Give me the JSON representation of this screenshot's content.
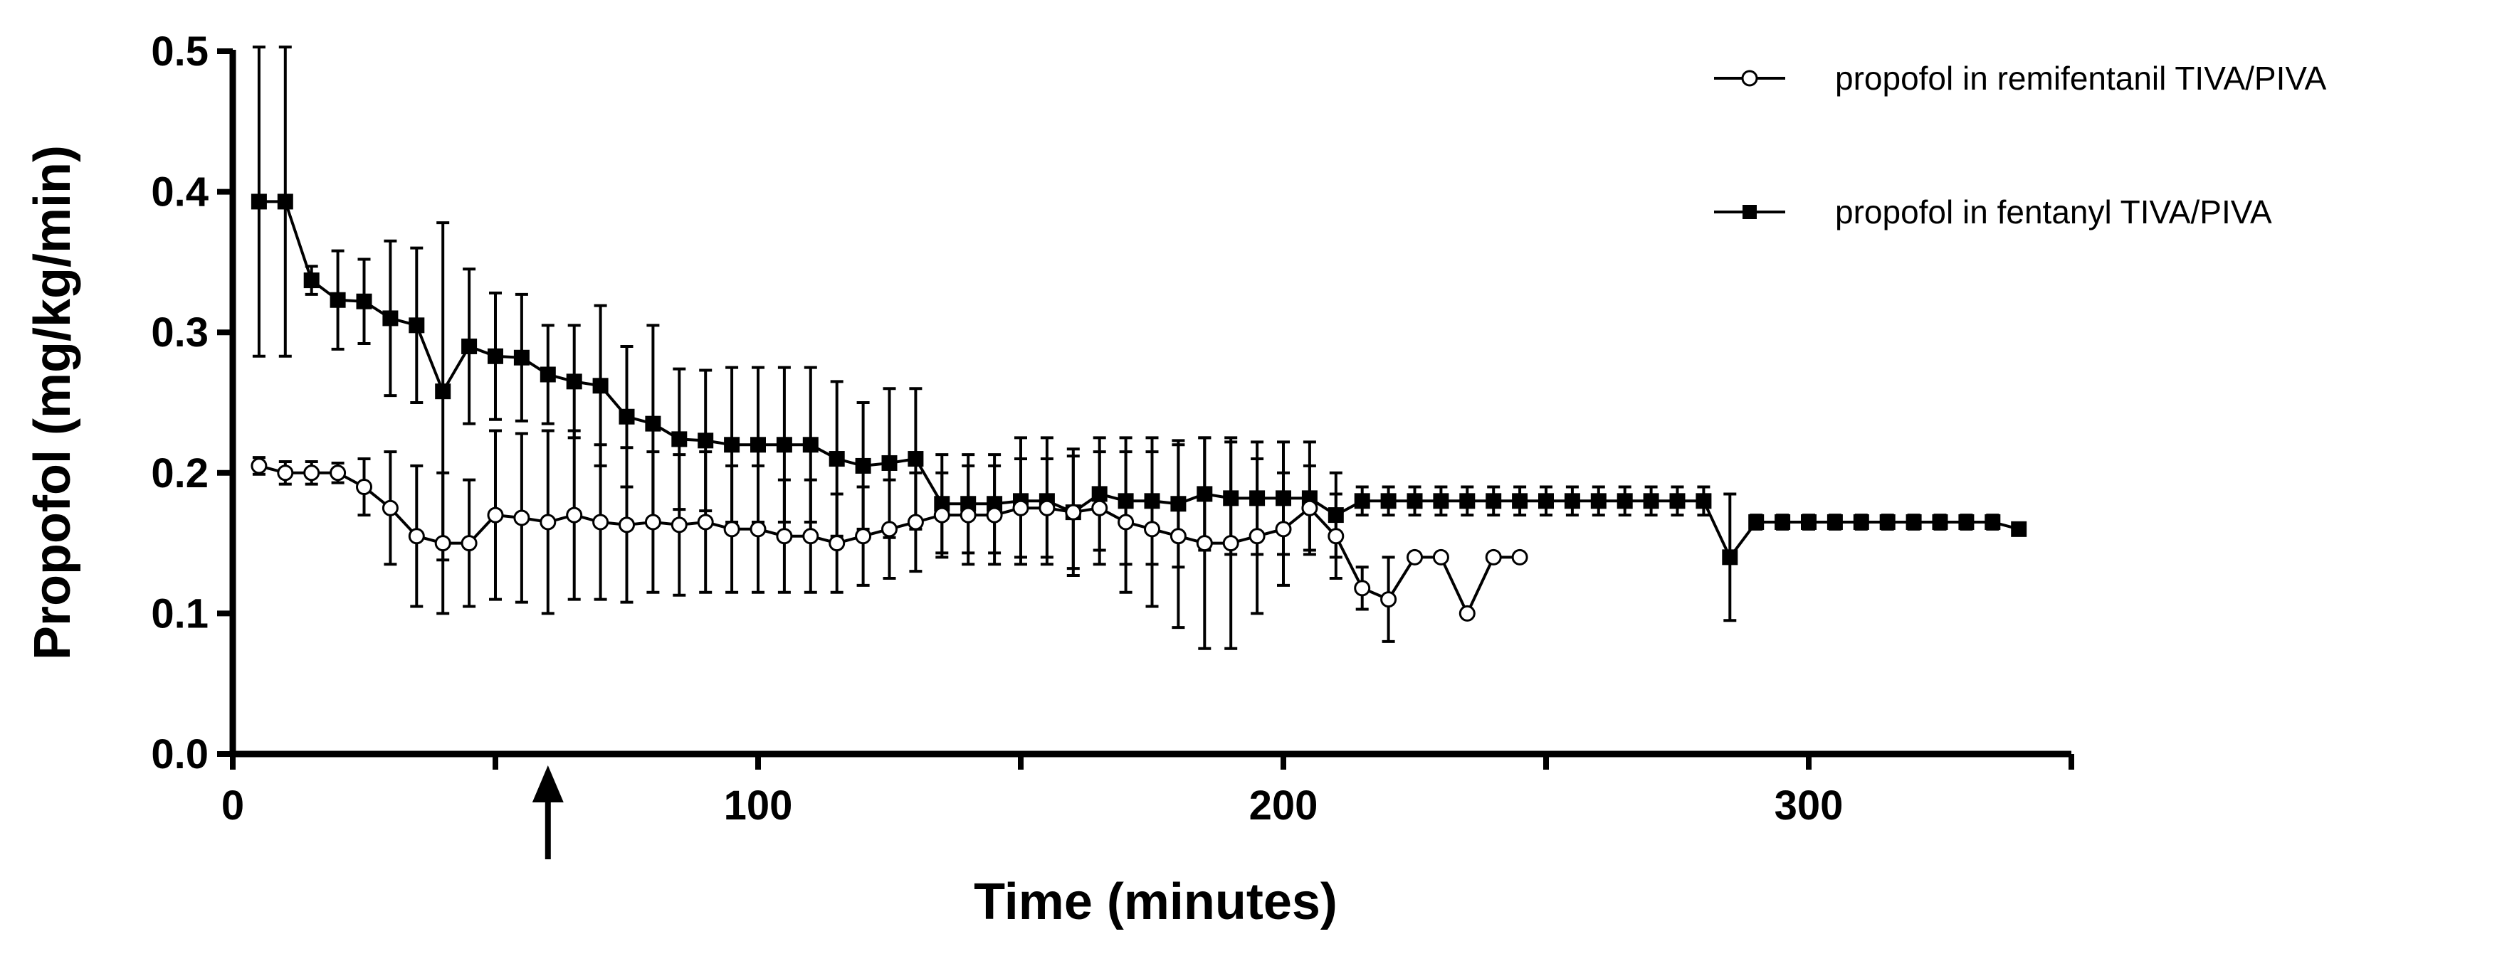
{
  "chart_data": {
    "type": "line",
    "xlabel": "Time (minutes)",
    "ylabel": "Propofol (mg/kg/min)",
    "xlim": [
      0,
      350
    ],
    "ylim": [
      0,
      0.5
    ],
    "x_ticks": [
      {
        "value": 0,
        "label": "0"
      },
      {
        "value": 100,
        "label": "100"
      },
      {
        "value": 200,
        "label": "200"
      },
      {
        "value": 300,
        "label": "300"
      }
    ],
    "x_minor_ticks": [
      50,
      150,
      250,
      350
    ],
    "y_ticks": [
      {
        "value": 0.0,
        "label": "0.0"
      },
      {
        "value": 0.1,
        "label": "0.1"
      },
      {
        "value": 0.2,
        "label": "0.2"
      },
      {
        "value": 0.3,
        "label": "0.3"
      },
      {
        "value": 0.4,
        "label": "0.4"
      },
      {
        "value": 0.5,
        "label": "0.5"
      }
    ],
    "grid": false,
    "legend_position": "top-right",
    "annotations": [
      {
        "type": "arrow",
        "x": 60,
        "direction": "up",
        "location": "below-x-axis"
      }
    ],
    "series": [
      {
        "name": "propofol in remifentanil TIVA/PIVA",
        "marker": "open-circle",
        "color": "#000000",
        "points": [
          [
            5,
            0.205,
            0.006
          ],
          [
            10,
            0.2,
            0.008
          ],
          [
            15,
            0.2,
            0.008
          ],
          [
            20,
            0.2,
            0.007
          ],
          [
            25,
            0.19,
            0.02
          ],
          [
            30,
            0.175,
            0.04
          ],
          [
            35,
            0.155,
            0.05
          ],
          [
            40,
            0.15,
            0.05
          ],
          [
            45,
            0.15,
            0.045
          ],
          [
            50,
            0.17,
            0.06
          ],
          [
            55,
            0.168,
            0.06
          ],
          [
            60,
            0.165,
            0.065
          ],
          [
            65,
            0.17,
            0.06
          ],
          [
            70,
            0.165,
            0.055
          ],
          [
            75,
            0.163,
            0.055
          ],
          [
            80,
            0.165,
            0.05
          ],
          [
            85,
            0.163,
            0.05
          ],
          [
            90,
            0.165,
            0.05
          ],
          [
            95,
            0.16,
            0.045
          ],
          [
            100,
            0.16,
            0.045
          ],
          [
            105,
            0.155,
            0.04
          ],
          [
            110,
            0.155,
            0.04
          ],
          [
            115,
            0.15,
            0.035
          ],
          [
            120,
            0.155,
            0.035
          ],
          [
            125,
            0.16,
            0.035
          ],
          [
            130,
            0.165,
            0.035
          ],
          [
            135,
            0.17,
            0.03
          ],
          [
            140,
            0.17,
            0.035
          ],
          [
            145,
            0.17,
            0.035
          ],
          [
            150,
            0.175,
            0.035
          ],
          [
            155,
            0.175,
            0.035
          ],
          [
            160,
            0.172,
            0.04
          ],
          [
            165,
            0.175,
            0.04
          ],
          [
            170,
            0.165,
            0.05
          ],
          [
            175,
            0.16,
            0.055
          ],
          [
            180,
            0.155,
            0.065
          ],
          [
            185,
            0.15,
            0.075
          ],
          [
            190,
            0.15,
            0.075
          ],
          [
            195,
            0.155,
            0.055
          ],
          [
            200,
            0.16,
            0.04
          ],
          [
            205,
            0.175,
            0.03
          ],
          [
            210,
            0.155,
            0.03
          ],
          [
            215,
            0.118,
            0.015
          ],
          [
            220,
            0.11,
            0.03
          ],
          [
            225,
            0.14,
            0
          ],
          [
            230,
            0.14,
            0
          ],
          [
            235,
            0.1,
            0
          ],
          [
            240,
            0.14,
            0
          ],
          [
            245,
            0.14,
            0
          ]
        ]
      },
      {
        "name": "propofol in fentanyl TIVA/PIVA",
        "marker": "filled-square",
        "color": "#000000",
        "points": [
          [
            5,
            0.393,
            0.11
          ],
          [
            10,
            0.393,
            0.11
          ],
          [
            15,
            0.337,
            0.01
          ],
          [
            20,
            0.323,
            0.035
          ],
          [
            25,
            0.322,
            0.03
          ],
          [
            30,
            0.31,
            0.055
          ],
          [
            35,
            0.305,
            0.055
          ],
          [
            40,
            0.258,
            0.12
          ],
          [
            45,
            0.29,
            0.055
          ],
          [
            50,
            0.283,
            0.045
          ],
          [
            55,
            0.282,
            0.045
          ],
          [
            60,
            0.27,
            0.035
          ],
          [
            65,
            0.265,
            0.04
          ],
          [
            70,
            0.262,
            0.057
          ],
          [
            75,
            0.24,
            0.05
          ],
          [
            80,
            0.235,
            0.07
          ],
          [
            85,
            0.224,
            0.05
          ],
          [
            90,
            0.223,
            0.05
          ],
          [
            95,
            0.22,
            0.055
          ],
          [
            100,
            0.22,
            0.055
          ],
          [
            105,
            0.22,
            0.055
          ],
          [
            110,
            0.22,
            0.055
          ],
          [
            115,
            0.21,
            0.055
          ],
          [
            120,
            0.205,
            0.045
          ],
          [
            125,
            0.207,
            0.053
          ],
          [
            130,
            0.21,
            0.05
          ],
          [
            135,
            0.178,
            0.035
          ],
          [
            140,
            0.178,
            0.035
          ],
          [
            145,
            0.178,
            0.035
          ],
          [
            150,
            0.18,
            0.045
          ],
          [
            155,
            0.18,
            0.045
          ],
          [
            160,
            0.172,
            0.045
          ],
          [
            165,
            0.185,
            0.04
          ],
          [
            170,
            0.18,
            0.045
          ],
          [
            175,
            0.18,
            0.045
          ],
          [
            180,
            0.178,
            0.045
          ],
          [
            185,
            0.185,
            0.04
          ],
          [
            190,
            0.182,
            0.04
          ],
          [
            195,
            0.182,
            0.04
          ],
          [
            200,
            0.182,
            0.04
          ],
          [
            205,
            0.182,
            0.04
          ],
          [
            210,
            0.17,
            0.03
          ],
          [
            215,
            0.18,
            0.01
          ],
          [
            220,
            0.18,
            0.01
          ],
          [
            225,
            0.18,
            0.01
          ],
          [
            230,
            0.18,
            0.01
          ],
          [
            235,
            0.18,
            0.01
          ],
          [
            240,
            0.18,
            0.01
          ],
          [
            245,
            0.18,
            0.01
          ],
          [
            250,
            0.18,
            0.01
          ],
          [
            255,
            0.18,
            0.01
          ],
          [
            260,
            0.18,
            0.01
          ],
          [
            265,
            0.18,
            0.01
          ],
          [
            270,
            0.18,
            0.01
          ],
          [
            275,
            0.18,
            0.01
          ],
          [
            280,
            0.18,
            0.01
          ],
          [
            285,
            0.14,
            0.045
          ],
          [
            290,
            0.165,
            0.005
          ],
          [
            295,
            0.165,
            0.005
          ],
          [
            300,
            0.165,
            0.005
          ],
          [
            305,
            0.165,
            0.005
          ],
          [
            310,
            0.165,
            0.005
          ],
          [
            315,
            0.165,
            0.005
          ],
          [
            320,
            0.165,
            0.005
          ],
          [
            325,
            0.165,
            0.005
          ],
          [
            330,
            0.165,
            0.005
          ],
          [
            335,
            0.165,
            0.005
          ],
          [
            340,
            0.16,
            0
          ]
        ]
      }
    ]
  }
}
